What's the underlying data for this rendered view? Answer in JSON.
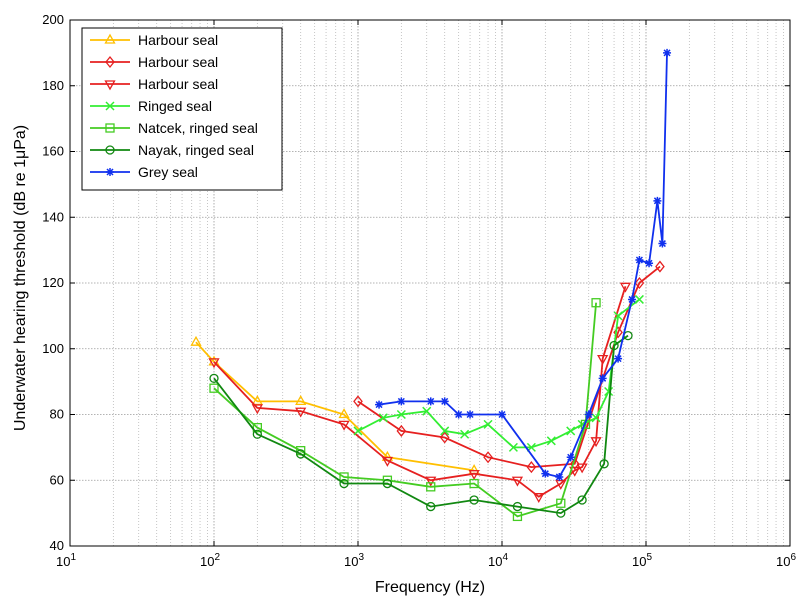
{
  "chart_data": {
    "type": "line",
    "xscale": "log",
    "title": "",
    "xlabel": "Frequency (Hz)",
    "ylabel": "Underwater hearing threshold (dB re 1μPa)",
    "xlim": [
      10,
      1000000
    ],
    "ylim": [
      40,
      200
    ],
    "grid": true,
    "legend_position": "top-left",
    "yticks": [
      "40",
      "60",
      "80",
      "100",
      "120",
      "140",
      "160",
      "180",
      "200"
    ],
    "xticks": [
      {
        "base": "10",
        "exp": "1",
        "value": 10
      },
      {
        "base": "10",
        "exp": "2",
        "value": 100
      },
      {
        "base": "10",
        "exp": "3",
        "value": 1000
      },
      {
        "base": "10",
        "exp": "4",
        "value": 10000
      },
      {
        "base": "10",
        "exp": "5",
        "value": 100000
      },
      {
        "base": "10",
        "exp": "6",
        "value": 1000000
      }
    ],
    "series": [
      {
        "name": "Harbour seal",
        "color": "#ffbf00",
        "marker": "triangle-up",
        "x": [
          75,
          100,
          200,
          400,
          800,
          1600,
          6400
        ],
        "y": [
          102,
          96,
          84,
          84,
          80,
          67,
          63
        ]
      },
      {
        "name": "Harbour seal",
        "color": "#e62020",
        "marker": "diamond",
        "x": [
          1000,
          2000,
          4000,
          8000,
          16000,
          32000,
          64000,
          90000,
          125000
        ],
        "y": [
          84,
          75,
          73,
          67,
          64,
          65,
          105,
          120,
          125
        ]
      },
      {
        "name": "Harbour seal",
        "color": "#e62020",
        "marker": "triangle-down",
        "x": [
          100,
          200,
          400,
          800,
          1600,
          3200,
          6400,
          12800,
          18000,
          25600,
          32000,
          36000,
          45000,
          50000,
          72000
        ],
        "y": [
          96,
          82,
          81,
          77,
          66,
          60,
          62,
          60,
          55,
          59,
          63,
          64,
          72,
          97,
          119
        ]
      },
      {
        "name": "Ringed seal",
        "color": "#33ee33",
        "marker": "x",
        "x": [
          1000,
          1500,
          2000,
          3000,
          4000,
          5500,
          8000,
          12000,
          16000,
          22000,
          30000,
          36000,
          45000,
          55000,
          64000,
          90000
        ],
        "y": [
          75,
          79,
          80,
          81,
          75,
          74,
          77,
          70,
          70,
          72,
          75,
          77,
          79,
          87,
          110,
          115
        ]
      },
      {
        "name": "Natcek, ringed seal",
        "color": "#44cc22",
        "marker": "square",
        "x": [
          100,
          200,
          400,
          800,
          1600,
          3200,
          6400,
          12800,
          25600,
          38000,
          45000
        ],
        "y": [
          88,
          76,
          69,
          61,
          60,
          58,
          59,
          49,
          53,
          77,
          114
        ]
      },
      {
        "name": "Nayak, ringed seal",
        "color": "#118811",
        "marker": "circle",
        "x": [
          100,
          200,
          400,
          800,
          1600,
          3200,
          6400,
          12800,
          25600,
          36000,
          51200,
          60000,
          75000
        ],
        "y": [
          91,
          74,
          68,
          59,
          59,
          52,
          54,
          52,
          50,
          54,
          65,
          101,
          104
        ]
      },
      {
        "name": "Grey seal",
        "color": "#1030ee",
        "marker": "star",
        "x": [
          1400,
          2000,
          3200,
          4000,
          5000,
          6000,
          10000,
          20000,
          25000,
          30000,
          40000,
          50000,
          64000,
          80000,
          90000,
          105000,
          120000,
          130000,
          140000
        ],
        "y": [
          83,
          84,
          84,
          84,
          80,
          80,
          80,
          62,
          61,
          67,
          80,
          91,
          97,
          115,
          127,
          126,
          145,
          132,
          190
        ]
      }
    ]
  }
}
